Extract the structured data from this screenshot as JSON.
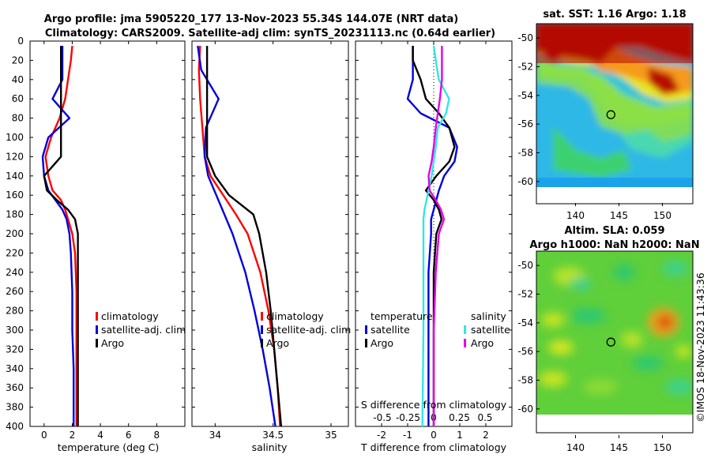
{
  "titles": {
    "line1": "Argo profile: jma 5905220_177 13-Nov-2023 55.34S 144.07E (NRT data)",
    "line2": "Climatology: CARS2009. Satellite-adj clim: synTS_20231113.nc (0.64d earlier)"
  },
  "credit": "©IMOS 18-Nov-2023 11:43:36",
  "map_titles": {
    "sst": "sat. SST: 1.16 Argo: 1.18",
    "sla_line1": "Altim. SLA: 0.059",
    "sla_line2": "Argo h1000: NaN h2000: NaN"
  },
  "legends": {
    "temperature": [
      "climatology",
      "satellite-adj. clim",
      "Argo"
    ],
    "salinity": [
      "climatology",
      "satellite-adj. clim",
      "Argo"
    ],
    "diff_temp_header": "temperature",
    "diff_sal_header": "salinity",
    "diff_temp": [
      "satellite",
      "Argo"
    ],
    "diff_sal": [
      "satellite",
      "Argo"
    ]
  },
  "colors": {
    "climatology": "#ff0000",
    "satellite": "#0000dd",
    "argo": "#000000",
    "sal_satellite": "#33e6e6",
    "sal_argo": "#e600e6"
  },
  "chart_data": [
    {
      "type": "line",
      "name": "temperature",
      "xlabel": "temperature (deg C)",
      "ylabel": "",
      "xlim": [
        -1,
        10
      ],
      "ylim": [
        400,
        0
      ],
      "x_ticks": [
        "0",
        "2",
        "4",
        "6",
        "8"
      ],
      "x_tick_values": [
        0,
        2,
        4,
        6,
        8
      ],
      "y_ticks": [
        "0",
        "20",
        "40",
        "60",
        "80",
        "100",
        "120",
        "140",
        "160",
        "180",
        "200",
        "220",
        "240",
        "260",
        "280",
        "300",
        "320",
        "340",
        "360",
        "380",
        "400"
      ],
      "y_tick_values": [
        0,
        20,
        40,
        60,
        80,
        100,
        120,
        140,
        160,
        180,
        200,
        220,
        240,
        260,
        280,
        300,
        320,
        340,
        360,
        380,
        400
      ],
      "depth": [
        5,
        20,
        40,
        60,
        80,
        100,
        120,
        140,
        155,
        165,
        175,
        185,
        200,
        220,
        260,
        300,
        340,
        380,
        400
      ],
      "series": [
        {
          "name": "climatology",
          "values": [
            2.0,
            1.9,
            1.7,
            1.5,
            1.1,
            0.5,
            0.1,
            0.3,
            0.6,
            1.2,
            1.5,
            1.7,
            2.0,
            2.2,
            2.3,
            2.3,
            2.3,
            2.3,
            2.3
          ]
        },
        {
          "name": "satellite-adj. clim",
          "values": [
            1.3,
            1.3,
            1.3,
            0.6,
            1.8,
            0.3,
            -0.1,
            0.0,
            0.3,
            0.8,
            1.3,
            1.6,
            1.8,
            1.9,
            2.0,
            2.0,
            2.1,
            2.1,
            2.1
          ]
        },
        {
          "name": "Argo",
          "values": [
            1.2,
            1.2,
            1.2,
            1.2,
            1.2,
            1.2,
            1.2,
            0.0,
            0.2,
            0.9,
            1.7,
            2.2,
            2.4,
            2.4,
            2.4,
            2.4,
            2.4,
            2.4,
            2.4
          ]
        }
      ]
    },
    {
      "type": "line",
      "name": "salinity",
      "xlabel": "salinity",
      "ylabel": "",
      "xlim": [
        33.8,
        35.15
      ],
      "ylim": [
        400,
        0
      ],
      "x_ticks": [
        "34",
        "34.5",
        "35"
      ],
      "x_tick_values": [
        34,
        34.5,
        35
      ],
      "depth": [
        5,
        30,
        60,
        90,
        120,
        140,
        160,
        180,
        200,
        240,
        280,
        320,
        360,
        400
      ],
      "series": [
        {
          "name": "climatology",
          "values": [
            33.87,
            33.86,
            33.87,
            33.89,
            33.91,
            33.96,
            34.07,
            34.18,
            34.28,
            34.39,
            34.46,
            34.51,
            34.54,
            34.56
          ]
        },
        {
          "name": "satellite-adj. clim",
          "values": [
            33.85,
            33.88,
            34.03,
            33.92,
            33.91,
            33.94,
            34.01,
            34.08,
            34.15,
            34.26,
            34.34,
            34.41,
            34.47,
            34.52
          ]
        },
        {
          "name": "Argo",
          "values": [
            33.93,
            33.93,
            33.93,
            33.93,
            33.93,
            34.0,
            34.12,
            34.33,
            34.38,
            34.44,
            34.48,
            34.51,
            34.54,
            34.57
          ]
        }
      ]
    },
    {
      "type": "line",
      "name": "differences",
      "xlabel": "T difference from climatology",
      "xlabel_top": "S difference from climatology",
      "xlim": [
        -3,
        3
      ],
      "ylim": [
        400,
        0
      ],
      "x_ticks": [
        "-2",
        "-1",
        "0",
        "1",
        "2"
      ],
      "x_tick_values": [
        -2,
        -1,
        0,
        1,
        2
      ],
      "s_ticks": [
        "-0.5",
        "-0.25",
        "0",
        "0.25",
        "0.5"
      ],
      "s_tick_values": [
        -0.5,
        -0.25,
        0,
        0.25,
        0.5
      ],
      "depth": [
        5,
        20,
        40,
        60,
        75,
        90,
        110,
        125,
        140,
        155,
        165,
        175,
        185,
        200,
        240,
        300,
        400
      ],
      "series": [
        {
          "name": "temperature satellite",
          "axis": "T",
          "values": [
            -0.8,
            -0.8,
            -0.8,
            -1.0,
            -0.5,
            0.6,
            0.9,
            0.8,
            0.4,
            0.2,
            0.1,
            0.0,
            -0.1,
            -0.1,
            -0.2,
            -0.2,
            -0.2
          ]
        },
        {
          "name": "temperature Argo",
          "axis": "T",
          "values": [
            -0.8,
            -0.8,
            -0.5,
            -0.3,
            0.2,
            0.6,
            0.8,
            0.6,
            0.1,
            -0.3,
            0.0,
            0.2,
            0.3,
            0.1,
            0.0,
            0.0,
            0.0
          ]
        },
        {
          "name": "salinity satellite",
          "axis": "S",
          "values": [
            0.0,
            0.02,
            0.05,
            0.15,
            0.12,
            0.04,
            0.02,
            0.0,
            -0.02,
            -0.05,
            -0.07,
            -0.09,
            -0.1,
            -0.1,
            -0.1,
            -0.1,
            -0.11
          ]
        },
        {
          "name": "salinity Argo",
          "axis": "S",
          "values": [
            0.08,
            0.08,
            0.08,
            0.06,
            0.04,
            0.02,
            0.0,
            -0.02,
            -0.05,
            -0.04,
            0.02,
            0.07,
            0.1,
            0.05,
            0.02,
            0.0,
            0.0
          ]
        }
      ]
    },
    {
      "type": "heatmap",
      "name": "satellite SST map",
      "title": "sat. SST: 1.16 Argo: 1.18",
      "xlim": [
        135.5,
        153.5
      ],
      "ylim": [
        -61,
        -49
      ],
      "x_ticks": [
        "140",
        "145",
        "150"
      ],
      "x_tick_values": [
        140,
        145,
        150
      ],
      "y_ticks": [
        "-50",
        "-52",
        "-54",
        "-56",
        "-58",
        "-60"
      ],
      "y_tick_values": [
        -50,
        -52,
        -54,
        -56,
        -58,
        -60
      ],
      "argo_position": {
        "lon": 144.07,
        "lat": -55.34
      }
    },
    {
      "type": "heatmap",
      "name": "altimetry SLA map",
      "title": "Altim. SLA: 0.059",
      "xlim": [
        135.5,
        153.5
      ],
      "ylim": [
        -61,
        -49
      ],
      "x_ticks": [
        "140",
        "145",
        "150"
      ],
      "x_tick_values": [
        140,
        145,
        150
      ],
      "y_ticks": [
        "-50",
        "-52",
        "-54",
        "-56",
        "-58",
        "-60"
      ],
      "y_tick_values": [
        -50,
        -52,
        -54,
        -56,
        -58,
        -60
      ],
      "argo_position": {
        "lon": 144.07,
        "lat": -55.34
      }
    }
  ]
}
